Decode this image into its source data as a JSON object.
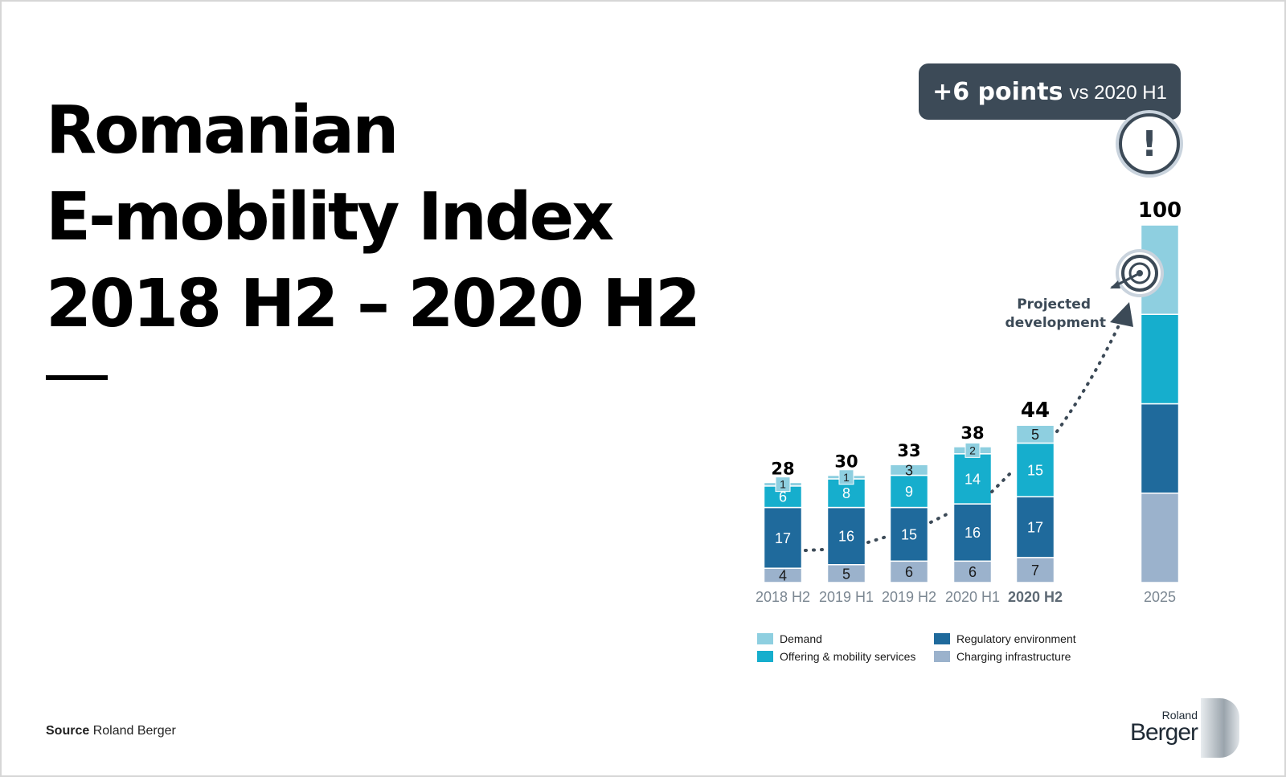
{
  "title": {
    "line1": "Romanian",
    "line2": "E-mobility Index",
    "line3": "2018 H2 – 2020 H2"
  },
  "callout": {
    "highlight": "+6 points",
    "rest": "vs 2020 H1"
  },
  "icons": {
    "alert": "exclamation-icon",
    "target": "target-icon"
  },
  "annotation": {
    "line1": "Projected",
    "line2": "development"
  },
  "source": {
    "label": "Source",
    "text": "Roland Berger"
  },
  "logo": {
    "line1": "Roland",
    "line2": "Berger"
  },
  "colors": {
    "demand": "#8ecfe0",
    "offering": "#16aecd",
    "regulatory": "#1f6a9c",
    "charging": "#9bb2cc",
    "callout": "#3c4a57",
    "dotted_line": "#3c4a57"
  },
  "chart_data": {
    "type": "bar",
    "stacked": true,
    "categories": [
      "2018 H2",
      "2019 H1",
      "2019 H2",
      "2020 H1",
      "2020 H2",
      "2025"
    ],
    "highlight_category": "2020 H2",
    "totals": [
      28,
      30,
      33,
      38,
      44,
      100
    ],
    "series": [
      {
        "name": "Charging infrastructure",
        "key": "charging",
        "values": [
          4,
          5,
          6,
          6,
          7,
          25
        ]
      },
      {
        "name": "Regulatory environment",
        "key": "regulatory",
        "values": [
          17,
          16,
          15,
          16,
          17,
          25
        ]
      },
      {
        "name": "Offering & mobility services",
        "key": "offering",
        "values": [
          6,
          8,
          9,
          14,
          15,
          25
        ]
      },
      {
        "name": "Demand",
        "key": "demand",
        "values": [
          1,
          1,
          3,
          2,
          5,
          25
        ]
      }
    ],
    "segment_labels_hidden_for": [
      "2025"
    ],
    "ylim": [
      0,
      100
    ],
    "legend_position": "bottom"
  }
}
